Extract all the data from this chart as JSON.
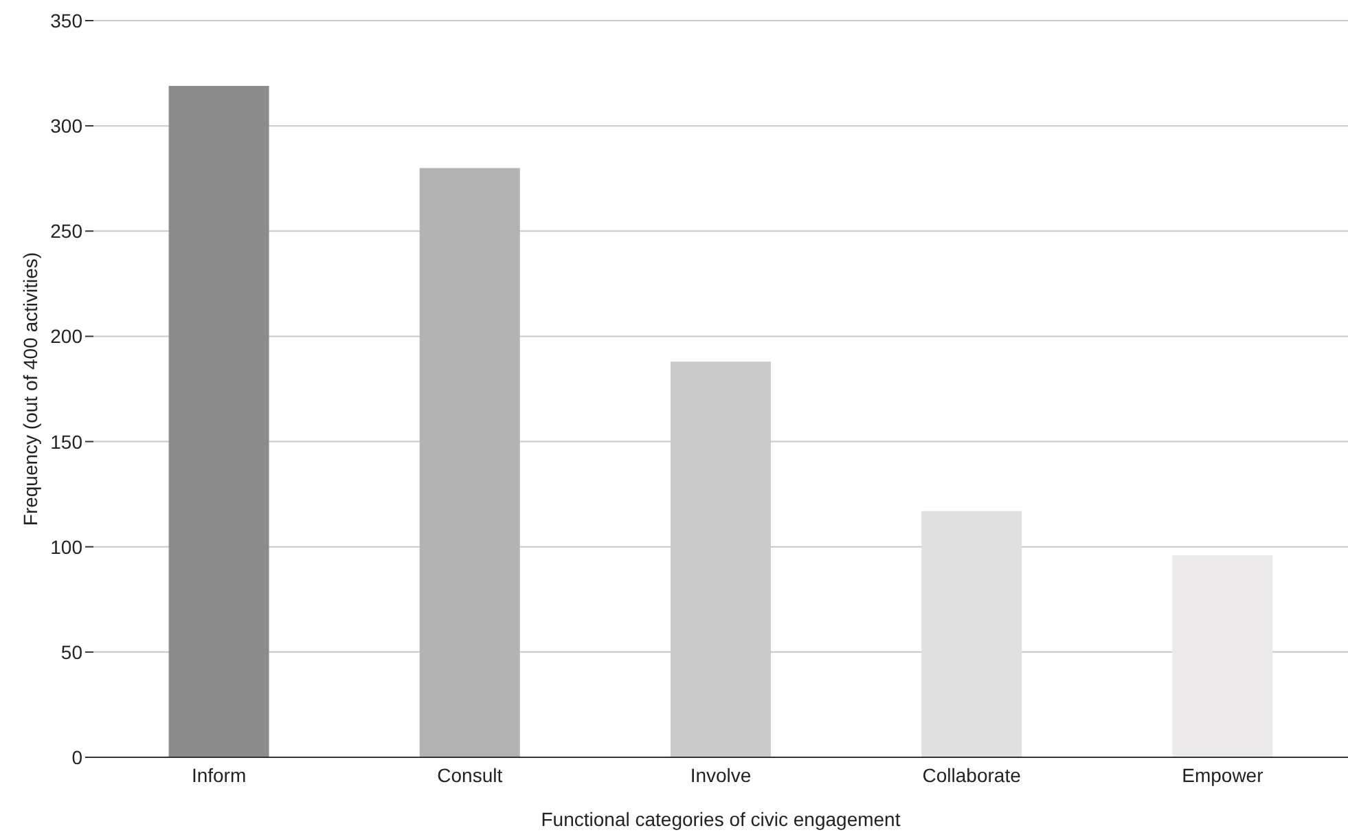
{
  "chart_data": {
    "type": "bar",
    "xlabel": "Functional categories of civic engagement",
    "ylabel": "Frequency (out of 400 activities)",
    "categories": [
      "Inform",
      "Consult",
      "Involve",
      "Collaborate",
      "Empower"
    ],
    "values": [
      319,
      280,
      188,
      117,
      96
    ],
    "colors": [
      "#8c8c8c",
      "#b3b3b3",
      "#cacaca",
      "#e0e0e0",
      "#ebe9ea"
    ],
    "ylim": [
      0,
      350
    ],
    "yticks": [
      0,
      50,
      100,
      150,
      200,
      250,
      300,
      350
    ],
    "grid": "y",
    "legend": false
  }
}
